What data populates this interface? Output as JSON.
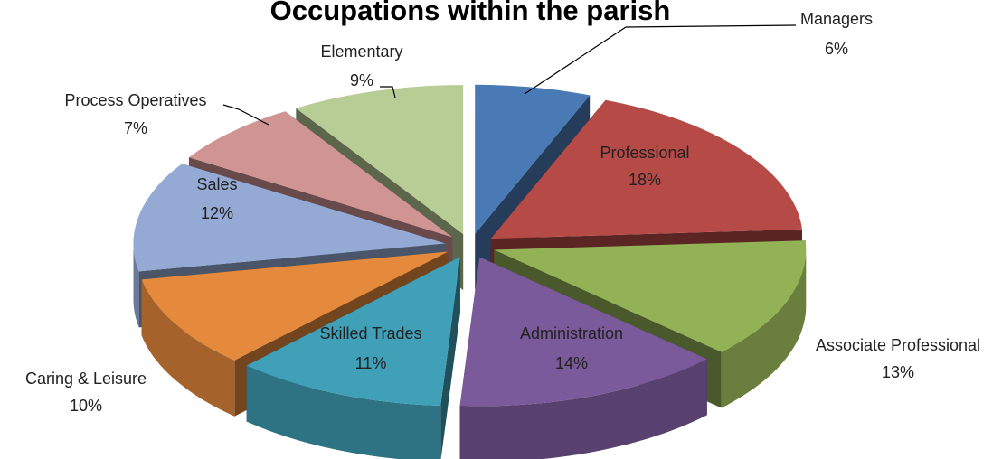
{
  "chart_data": {
    "type": "pie3d",
    "title": "Occupations within the parish",
    "categories": [
      "Managers",
      "Professional",
      "Associate Professional",
      "Administration",
      "Skilled Trades",
      "Caring & Leisure",
      "Sales",
      "Process Operatives",
      "Elementary"
    ],
    "values": [
      6,
      18,
      13,
      14,
      11,
      10,
      12,
      7,
      9
    ],
    "value_labels": [
      "6%",
      "18%",
      "13%",
      "14%",
      "11%",
      "10%",
      "12%",
      "7%",
      "9%"
    ],
    "colors": [
      "#4a7ab5",
      "#b64a47",
      "#93b155",
      "#7a5a9a",
      "#3fa0b8",
      "#e58a3c",
      "#94a9d4",
      "#d09493",
      "#b8cc95"
    ],
    "exploded": true
  }
}
